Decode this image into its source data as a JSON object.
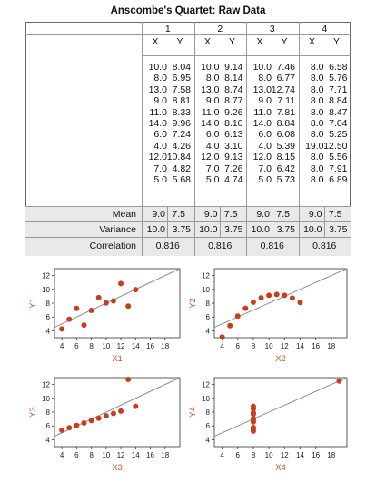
{
  "title": "Anscombe's Quartet: Raw Data",
  "table": {
    "set_labels": [
      "1",
      "2",
      "3",
      "4"
    ],
    "col_labels": [
      "X",
      "Y"
    ],
    "row_labels": {
      "mean": "Mean",
      "variance": "Variance",
      "correlation": "Correlation"
    },
    "sets": [
      {
        "x": [
          "10.0",
          "8.0",
          "13.0",
          "9.0",
          "11.0",
          "14.0",
          "6.0",
          "4.0",
          "12.0",
          "7.0",
          "5.0"
        ],
        "y": [
          "8.04",
          "6.95",
          "7.58",
          "8.81",
          "8.33",
          "9.96",
          "7.24",
          "4.26",
          "10.84",
          "4.82",
          "5.68"
        ],
        "mean_x": "9.0",
        "mean_y": "7.5",
        "var_x": "10.0",
        "var_y": "3.75",
        "corr": "0.816"
      },
      {
        "x": [
          "10.0",
          "8.0",
          "13.0",
          "9.0",
          "11.0",
          "14.0",
          "6.0",
          "4.0",
          "12.0",
          "7.0",
          "5.0"
        ],
        "y": [
          "9.14",
          "8.14",
          "8.74",
          "8.77",
          "9.26",
          "8.10",
          "6.13",
          "3.10",
          "9.13",
          "7.26",
          "4.74"
        ],
        "mean_x": "9.0",
        "mean_y": "7.5",
        "var_x": "10.0",
        "var_y": "3.75",
        "corr": "0.816"
      },
      {
        "x": [
          "10.0",
          "8.0",
          "13.0",
          "9.0",
          "11.0",
          "14.0",
          "6.0",
          "4.0",
          "12.0",
          "7.0",
          "5.0"
        ],
        "y": [
          "7.46",
          "6.77",
          "12.74",
          "7.11",
          "7.81",
          "8.84",
          "6.08",
          "5.39",
          "8.15",
          "6.42",
          "5.73"
        ],
        "mean_x": "9.0",
        "mean_y": "7.5",
        "var_x": "10.0",
        "var_y": "3.75",
        "corr": "0.816"
      },
      {
        "x": [
          "8.0",
          "8.0",
          "8.0",
          "8.0",
          "8.0",
          "8.0",
          "8.0",
          "19.0",
          "8.0",
          "8.0",
          "8.0"
        ],
        "y": [
          "6.58",
          "5.76",
          "7.71",
          "8.84",
          "8.47",
          "7.04",
          "5.25",
          "12.50",
          "5.56",
          "7.91",
          "6.89"
        ],
        "mean_x": "9.0",
        "mean_y": "7.5",
        "var_x": "10.0",
        "var_y": "3.75",
        "corr": "0.816"
      }
    ]
  },
  "colors": {
    "points": "#c4401c",
    "axis_label": "#d4502a",
    "fit_line": "#8c8c8c",
    "shade": "#e9e9e9"
  },
  "chart_data": [
    {
      "type": "scatter",
      "xlabel": "X1",
      "ylabel": "Y1",
      "xlim": [
        3,
        20
      ],
      "ylim": [
        3,
        13
      ],
      "xticks": [
        4,
        6,
        8,
        10,
        12,
        14,
        16,
        18
      ],
      "yticks": [
        4,
        6,
        8,
        10,
        12
      ],
      "x": [
        10,
        8,
        13,
        9,
        11,
        14,
        6,
        4,
        12,
        7,
        5
      ],
      "y": [
        8.04,
        6.95,
        7.58,
        8.81,
        8.33,
        9.96,
        7.24,
        4.26,
        10.84,
        4.82,
        5.68
      ],
      "fit": {
        "intercept": 3.0,
        "slope": 0.5
      }
    },
    {
      "type": "scatter",
      "xlabel": "X2",
      "ylabel": "Y2",
      "xlim": [
        3,
        20
      ],
      "ylim": [
        3,
        13
      ],
      "xticks": [
        4,
        6,
        8,
        10,
        12,
        14,
        16,
        18
      ],
      "yticks": [
        4,
        6,
        8,
        10,
        12
      ],
      "x": [
        10,
        8,
        13,
        9,
        11,
        14,
        6,
        4,
        12,
        7,
        5
      ],
      "y": [
        9.14,
        8.14,
        8.74,
        8.77,
        9.26,
        8.1,
        6.13,
        3.1,
        9.13,
        7.26,
        4.74
      ],
      "fit": {
        "intercept": 3.0,
        "slope": 0.5
      }
    },
    {
      "type": "scatter",
      "xlabel": "X3",
      "ylabel": "Y3",
      "xlim": [
        3,
        20
      ],
      "ylim": [
        3,
        13
      ],
      "xticks": [
        4,
        6,
        8,
        10,
        12,
        14,
        16,
        18
      ],
      "yticks": [
        4,
        6,
        8,
        10,
        12
      ],
      "x": [
        10,
        8,
        13,
        9,
        11,
        14,
        6,
        4,
        12,
        7,
        5
      ],
      "y": [
        7.46,
        6.77,
        12.74,
        7.11,
        7.81,
        8.84,
        6.08,
        5.39,
        8.15,
        6.42,
        5.73
      ],
      "fit": {
        "intercept": 3.0,
        "slope": 0.5
      }
    },
    {
      "type": "scatter",
      "xlabel": "X4",
      "ylabel": "Y4",
      "xlim": [
        3,
        20
      ],
      "ylim": [
        3,
        13
      ],
      "xticks": [
        4,
        6,
        8,
        10,
        12,
        14,
        16,
        18
      ],
      "yticks": [
        4,
        6,
        8,
        10,
        12
      ],
      "x": [
        8,
        8,
        8,
        8,
        8,
        8,
        8,
        19,
        8,
        8,
        8
      ],
      "y": [
        6.58,
        5.76,
        7.71,
        8.84,
        8.47,
        7.04,
        5.25,
        12.5,
        5.56,
        7.91,
        6.89
      ],
      "fit": {
        "intercept": 3.0,
        "slope": 0.5
      }
    }
  ]
}
